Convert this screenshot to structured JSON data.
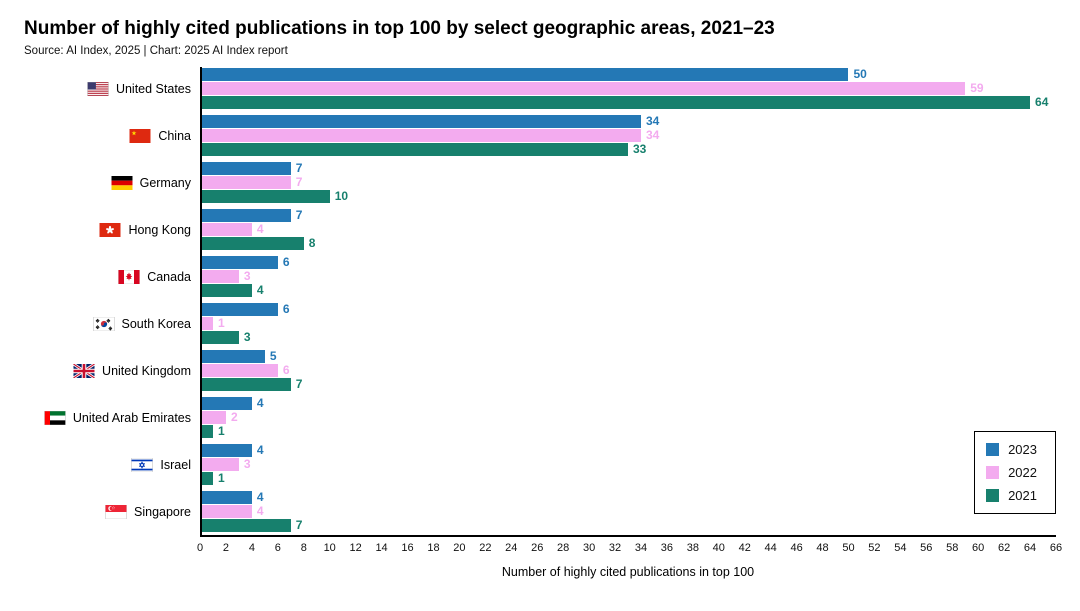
{
  "header": {
    "title": "Number of highly cited publications in top 100 by select geographic areas, 2021–23",
    "subtitle": "Source: AI Index, 2025 | Chart: 2025 AI Index report"
  },
  "chart_data": {
    "type": "bar",
    "orientation": "horizontal",
    "title": "Number of highly cited publications in top 100 by select geographic areas, 2021–23",
    "xlabel": "Number of highly cited publications in top 100",
    "xlim": [
      0,
      66
    ],
    "xticks": [
      0,
      2,
      4,
      6,
      8,
      10,
      12,
      14,
      16,
      18,
      20,
      22,
      24,
      26,
      28,
      30,
      32,
      34,
      36,
      38,
      40,
      42,
      44,
      46,
      48,
      50,
      52,
      54,
      56,
      58,
      60,
      62,
      64,
      66
    ],
    "grid": false,
    "legend_position": "bottom-right",
    "categories": [
      "United States",
      "China",
      "Germany",
      "Hong Kong",
      "Canada",
      "South Korea",
      "United Kingdom",
      "United Arab Emirates",
      "Israel",
      "Singapore"
    ],
    "flags": [
      "us",
      "cn",
      "de",
      "hk",
      "ca",
      "kr",
      "gb",
      "ae",
      "il",
      "sg"
    ],
    "flag_icon_names": [
      "us-flag-icon",
      "cn-flag-icon",
      "de-flag-icon",
      "hk-flag-icon",
      "ca-flag-icon",
      "kr-flag-icon",
      "gb-flag-icon",
      "ae-flag-icon",
      "il-flag-icon",
      "sg-flag-icon"
    ],
    "series": [
      {
        "name": "2023",
        "color": "#2478b5",
        "values": [
          50,
          34,
          7,
          7,
          6,
          6,
          5,
          4,
          4,
          4
        ]
      },
      {
        "name": "2022",
        "color": "#f3abef",
        "values": [
          59,
          34,
          7,
          4,
          3,
          1,
          6,
          2,
          3,
          4
        ]
      },
      {
        "name": "2021",
        "color": "#17806d",
        "values": [
          64,
          33,
          10,
          8,
          4,
          3,
          7,
          1,
          1,
          7
        ]
      }
    ]
  }
}
